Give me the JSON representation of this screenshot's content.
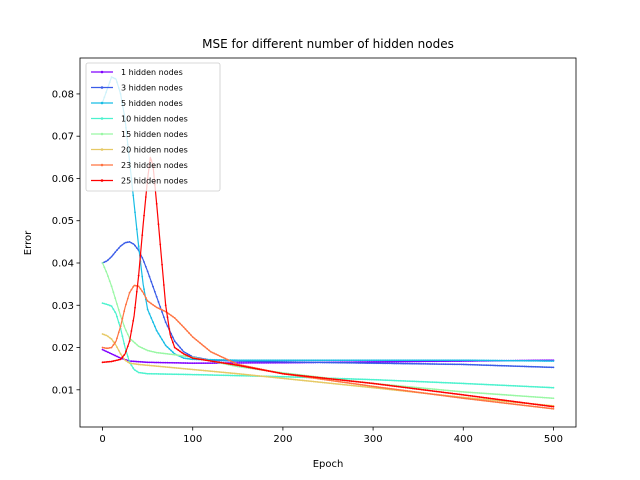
{
  "chart_data": {
    "type": "line",
    "title": "MSE for different number of hidden nodes",
    "xlabel": "Epoch",
    "ylabel": "Error",
    "xlim": [
      -25,
      525
    ],
    "ylim": [
      0.0012,
      0.0885
    ],
    "xticks": [
      0,
      100,
      200,
      300,
      400,
      500
    ],
    "yticks": [
      0.01,
      0.02,
      0.03,
      0.04,
      0.05,
      0.06,
      0.07,
      0.08
    ],
    "ytick_labels": [
      "0.01",
      "0.02",
      "0.03",
      "0.04",
      "0.05",
      "0.06",
      "0.07",
      "0.08"
    ],
    "grid": false,
    "legend_position": "top-left",
    "series": [
      {
        "name": "1 hidden nodes",
        "color": "#8000ff",
        "points": [
          [
            0,
            0.0195
          ],
          [
            10,
            0.0185
          ],
          [
            20,
            0.0175
          ],
          [
            30,
            0.0168
          ],
          [
            50,
            0.0165
          ],
          [
            100,
            0.0163
          ],
          [
            200,
            0.0164
          ],
          [
            300,
            0.0166
          ],
          [
            400,
            0.0168
          ],
          [
            500,
            0.017
          ]
        ]
      },
      {
        "name": "3 hidden nodes",
        "color": "#3a5ce8",
        "points": [
          [
            0,
            0.04
          ],
          [
            5,
            0.0405
          ],
          [
            10,
            0.0415
          ],
          [
            15,
            0.0428
          ],
          [
            20,
            0.044
          ],
          [
            25,
            0.0448
          ],
          [
            30,
            0.045
          ],
          [
            35,
            0.0444
          ],
          [
            40,
            0.043
          ],
          [
            45,
            0.0408
          ],
          [
            50,
            0.038
          ],
          [
            60,
            0.032
          ],
          [
            70,
            0.026
          ],
          [
            80,
            0.0215
          ],
          [
            90,
            0.019
          ],
          [
            100,
            0.0178
          ],
          [
            120,
            0.017
          ],
          [
            150,
            0.0168
          ],
          [
            200,
            0.0166
          ],
          [
            300,
            0.0163
          ],
          [
            400,
            0.016
          ],
          [
            500,
            0.0153
          ]
        ]
      },
      {
        "name": "5 hidden nodes",
        "color": "#18bde5",
        "points": [
          [
            0,
            0.078
          ],
          [
            10,
            0.084
          ],
          [
            15,
            0.0835
          ],
          [
            20,
            0.08
          ],
          [
            25,
            0.074
          ],
          [
            30,
            0.064
          ],
          [
            35,
            0.054
          ],
          [
            40,
            0.044
          ],
          [
            45,
            0.035
          ],
          [
            50,
            0.029
          ],
          [
            60,
            0.024
          ],
          [
            70,
            0.0205
          ],
          [
            80,
            0.0185
          ],
          [
            90,
            0.0175
          ],
          [
            100,
            0.0172
          ],
          [
            150,
            0.017
          ],
          [
            300,
            0.017
          ],
          [
            400,
            0.017
          ],
          [
            500,
            0.0168
          ]
        ]
      },
      {
        "name": "10 hidden nodes",
        "color": "#4cf2ce",
        "points": [
          [
            0,
            0.0305
          ],
          [
            5,
            0.0302
          ],
          [
            10,
            0.0298
          ],
          [
            15,
            0.028
          ],
          [
            20,
            0.0245
          ],
          [
            25,
            0.02
          ],
          [
            30,
            0.0165
          ],
          [
            35,
            0.0148
          ],
          [
            40,
            0.0141
          ],
          [
            50,
            0.0138
          ],
          [
            100,
            0.0136
          ],
          [
            200,
            0.0131
          ],
          [
            300,
            0.0124
          ],
          [
            400,
            0.0115
          ],
          [
            500,
            0.0105
          ]
        ]
      },
      {
        "name": "15 hidden nodes",
        "color": "#99f7a4",
        "points": [
          [
            0,
            0.04
          ],
          [
            5,
            0.0375
          ],
          [
            10,
            0.0345
          ],
          [
            15,
            0.031
          ],
          [
            20,
            0.0275
          ],
          [
            25,
            0.0245
          ],
          [
            30,
            0.0222
          ],
          [
            40,
            0.0203
          ],
          [
            50,
            0.0193
          ],
          [
            60,
            0.0188
          ],
          [
            80,
            0.0183
          ],
          [
            100,
            0.0177
          ],
          [
            120,
            0.0168
          ],
          [
            150,
            0.0155
          ],
          [
            200,
            0.014
          ],
          [
            300,
            0.0115
          ],
          [
            400,
            0.0095
          ],
          [
            500,
            0.008
          ]
        ]
      },
      {
        "name": "20 hidden nodes",
        "color": "#e6c965",
        "points": [
          [
            0,
            0.0232
          ],
          [
            5,
            0.0228
          ],
          [
            10,
            0.022
          ],
          [
            15,
            0.0205
          ],
          [
            20,
            0.0185
          ],
          [
            25,
            0.017
          ],
          [
            30,
            0.0163
          ],
          [
            40,
            0.016
          ],
          [
            50,
            0.0158
          ],
          [
            100,
            0.0148
          ],
          [
            150,
            0.0138
          ],
          [
            200,
            0.0127
          ],
          [
            300,
            0.0105
          ],
          [
            400,
            0.0082
          ],
          [
            500,
            0.0062
          ]
        ]
      },
      {
        "name": "23 hidden nodes",
        "color": "#ff7341",
        "points": [
          [
            0,
            0.02
          ],
          [
            5,
            0.0198
          ],
          [
            10,
            0.02
          ],
          [
            15,
            0.0215
          ],
          [
            20,
            0.025
          ],
          [
            25,
            0.0295
          ],
          [
            30,
            0.033
          ],
          [
            35,
            0.0347
          ],
          [
            40,
            0.0345
          ],
          [
            45,
            0.033
          ],
          [
            50,
            0.031
          ],
          [
            60,
            0.0295
          ],
          [
            70,
            0.0285
          ],
          [
            80,
            0.027
          ],
          [
            90,
            0.0248
          ],
          [
            100,
            0.0225
          ],
          [
            120,
            0.019
          ],
          [
            150,
            0.016
          ],
          [
            200,
            0.0138
          ],
          [
            300,
            0.0108
          ],
          [
            400,
            0.008
          ],
          [
            500,
            0.0055
          ]
        ]
      },
      {
        "name": "25 hidden nodes",
        "color": "#ff0000",
        "points": [
          [
            0,
            0.0165
          ],
          [
            10,
            0.0167
          ],
          [
            20,
            0.0172
          ],
          [
            25,
            0.0185
          ],
          [
            30,
            0.0215
          ],
          [
            35,
            0.0275
          ],
          [
            40,
            0.037
          ],
          [
            45,
            0.049
          ],
          [
            50,
            0.06
          ],
          [
            53,
            0.065
          ],
          [
            56,
            0.063
          ],
          [
            60,
            0.054
          ],
          [
            65,
            0.042
          ],
          [
            70,
            0.03
          ],
          [
            75,
            0.023
          ],
          [
            80,
            0.02
          ],
          [
            90,
            0.0185
          ],
          [
            100,
            0.0175
          ],
          [
            150,
            0.0158
          ],
          [
            200,
            0.0138
          ],
          [
            300,
            0.0115
          ],
          [
            400,
            0.0088
          ],
          [
            500,
            0.006
          ]
        ]
      }
    ]
  }
}
